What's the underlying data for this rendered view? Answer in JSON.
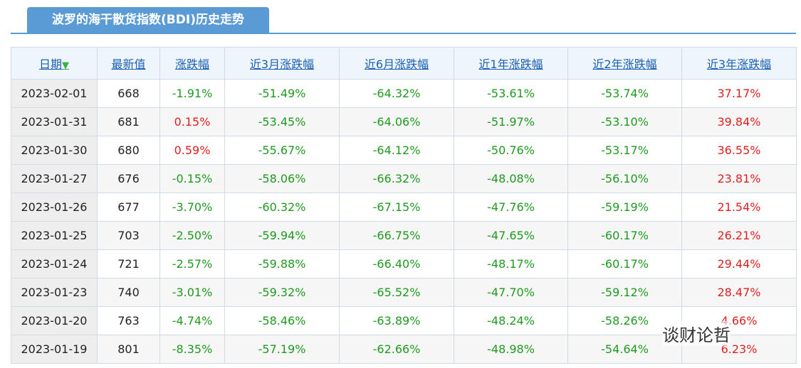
{
  "header": {
    "title": "波罗的海干散货指数(BDI)历史走势"
  },
  "table": {
    "columns": [
      "日期",
      "最新值",
      "涨跌幅",
      "近3月涨跌幅",
      "近6月涨跌幅",
      "近1年涨跌幅",
      "近2年涨跌幅",
      "近3年涨跌幅"
    ],
    "rows": [
      [
        "2023-02-01",
        "668",
        "-1.91%",
        "-51.49%",
        "-64.32%",
        "-53.61%",
        "-53.74%",
        "37.17%"
      ],
      [
        "2023-01-31",
        "681",
        "0.15%",
        "-53.45%",
        "-64.06%",
        "-51.97%",
        "-53.10%",
        "39.84%"
      ],
      [
        "2023-01-30",
        "680",
        "0.59%",
        "-55.67%",
        "-64.12%",
        "-50.76%",
        "-53.17%",
        "36.55%"
      ],
      [
        "2023-01-27",
        "676",
        "-0.15%",
        "-58.06%",
        "-66.32%",
        "-48.08%",
        "-56.10%",
        "23.81%"
      ],
      [
        "2023-01-26",
        "677",
        "-3.70%",
        "-60.32%",
        "-67.15%",
        "-47.76%",
        "-59.19%",
        "21.54%"
      ],
      [
        "2023-01-25",
        "703",
        "-2.50%",
        "-59.94%",
        "-66.75%",
        "-47.65%",
        "-60.17%",
        "26.21%"
      ],
      [
        "2023-01-24",
        "721",
        "-2.57%",
        "-59.88%",
        "-66.40%",
        "-48.17%",
        "-60.17%",
        "29.44%"
      ],
      [
        "2023-01-23",
        "740",
        "-3.01%",
        "-59.32%",
        "-65.52%",
        "-47.70%",
        "-59.12%",
        "28.47%"
      ],
      [
        "2023-01-20",
        "763",
        "-4.74%",
        "-58.46%",
        "-63.89%",
        "-48.24%",
        "-58.26%",
        "4.66%"
      ],
      [
        "2023-01-19",
        "801",
        "-8.35%",
        "-57.19%",
        "-62.66%",
        "-48.98%",
        "-54.64%",
        "6.23%"
      ]
    ]
  },
  "watermark": "谈财论哲"
}
